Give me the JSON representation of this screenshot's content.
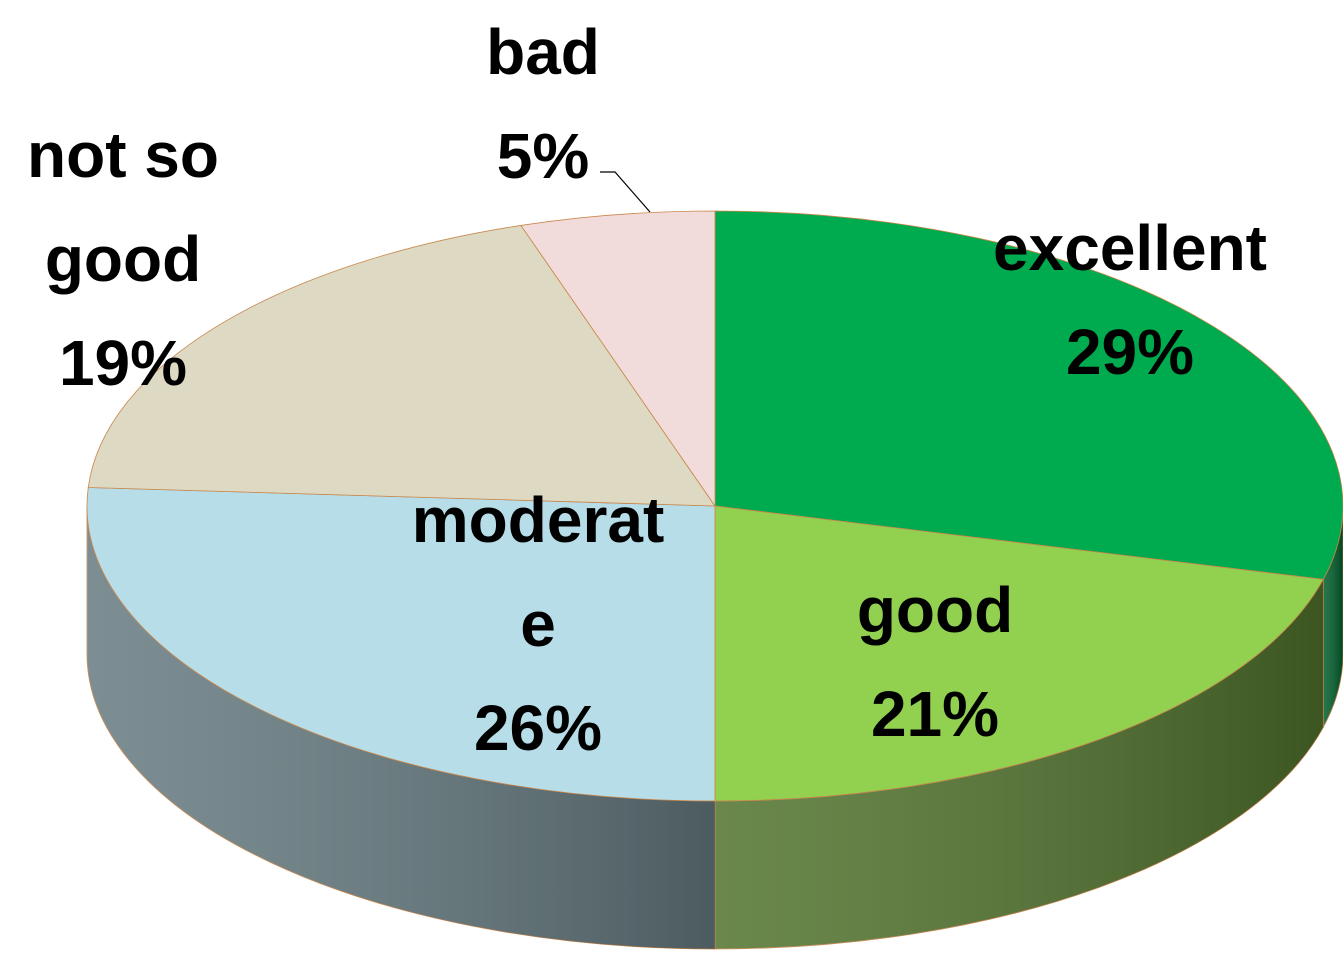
{
  "chart_data": {
    "type": "pie",
    "categories": [
      "excellent",
      "good",
      "moderate",
      "not so good",
      "bad"
    ],
    "values": [
      29,
      21,
      26,
      19,
      5
    ],
    "value_labels": [
      "29%",
      "21%",
      "26%",
      "19%",
      "5%"
    ],
    "colors": [
      "#00aa4e",
      "#92d050",
      "#b7dde8",
      "#ddd9c3",
      "#f2dcdb"
    ]
  }
}
